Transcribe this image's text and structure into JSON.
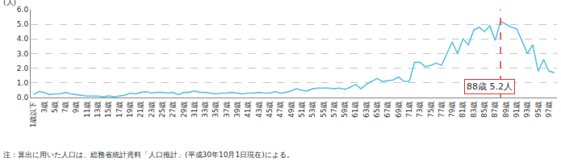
{
  "chart_data": {
    "type": "line",
    "y_label": "(人)",
    "note": "注：算出に用いた人口は、総務省統計資料「人口推計」(平成30年10月1日現在)による。",
    "categories": [
      "1歳以下",
      null,
      "3歳",
      null,
      "5歳",
      null,
      "7歳",
      null,
      "9歳",
      null,
      "11歳",
      null,
      "13歳",
      null,
      "15歳",
      null,
      "17歳",
      null,
      "19歳",
      null,
      "21歳",
      null,
      "23歳",
      null,
      "25歳",
      null,
      "27歳",
      null,
      "29歳",
      null,
      "31歳",
      null,
      "33歳",
      null,
      "35歳",
      null,
      "37歳",
      null,
      "39歳",
      null,
      "41歳",
      null,
      "43歳",
      null,
      "45歳",
      null,
      "47歳",
      null,
      "49歳",
      null,
      "51歳",
      null,
      "53歳",
      null,
      "55歳",
      null,
      "57歳",
      null,
      "59歳",
      null,
      "61歳",
      null,
      "63歳",
      null,
      "65歳",
      null,
      "67歳",
      null,
      "69歳",
      null,
      "71歳",
      null,
      "73歳",
      null,
      "75歳",
      null,
      "77歳",
      null,
      "79歳",
      null,
      "81歳",
      null,
      "83歳",
      null,
      "85歳",
      null,
      "87歳",
      null,
      "89歳",
      null,
      "91歳",
      null,
      "93歳",
      null,
      "95歳",
      null,
      "97歳",
      null
    ],
    "values": [
      0.2,
      0.4,
      0.35,
      0.2,
      0.25,
      0.25,
      0.35,
      0.25,
      0.2,
      0.15,
      0.1,
      0.1,
      0.1,
      0.05,
      0.1,
      0.05,
      0.1,
      0.15,
      0.3,
      0.25,
      0.35,
      0.4,
      0.3,
      0.35,
      0.35,
      0.3,
      0.35,
      0.2,
      0.35,
      0.35,
      0.45,
      0.35,
      0.35,
      0.3,
      0.25,
      0.3,
      0.3,
      0.35,
      0.3,
      0.25,
      0.3,
      0.3,
      0.35,
      0.3,
      0.3,
      0.4,
      0.3,
      0.35,
      0.45,
      0.6,
      0.5,
      0.45,
      0.6,
      0.65,
      0.65,
      0.65,
      0.6,
      0.65,
      0.55,
      0.7,
      0.9,
      0.6,
      0.9,
      1.1,
      1.3,
      1.1,
      1.15,
      1.2,
      1.4,
      1.1,
      1.1,
      2.4,
      2.4,
      2.1,
      2.2,
      2.35,
      2.2,
      3.0,
      3.8,
      3.0,
      4.0,
      3.6,
      4.6,
      4.8,
      4.5,
      4.9,
      3.9,
      5.2,
      5.0,
      4.8,
      4.7,
      3.8,
      3.0,
      3.6,
      1.8,
      2.6,
      1.8,
      1.7
    ],
    "color": "#5bc3ea",
    "line_style": "solid",
    "ylim": [
      0,
      6
    ],
    "yticks": [
      {
        "value": 0,
        "label": "0.0"
      },
      {
        "value": 1,
        "label": "1.0"
      },
      {
        "value": 2,
        "label": "2.0"
      },
      {
        "value": 3,
        "label": "3.0"
      },
      {
        "value": 4,
        "label": "4.0"
      },
      {
        "value": 5,
        "label": "5.0"
      },
      {
        "value": 6,
        "label": "6.0"
      }
    ],
    "grid": true,
    "annotations": [
      {
        "text": "88歳 5.2人",
        "x": 87,
        "y": 5.2,
        "color": "#e8383d"
      }
    ]
  }
}
